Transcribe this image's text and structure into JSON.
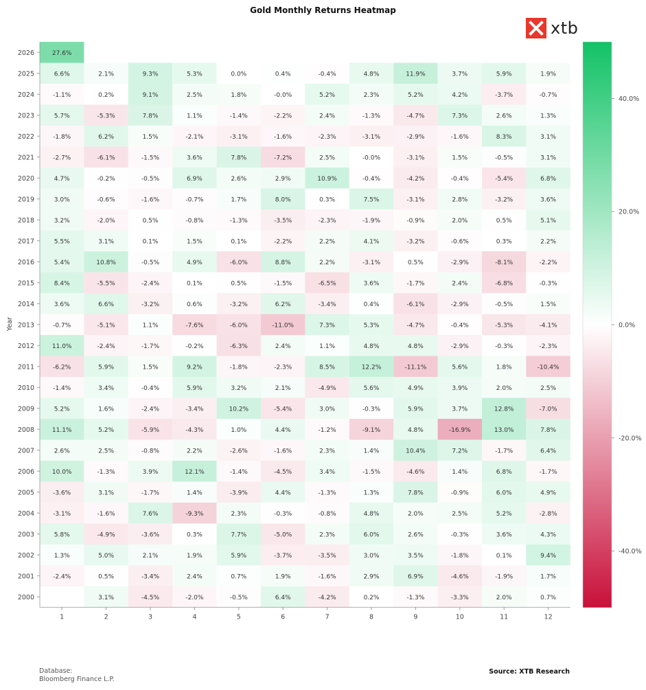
{
  "footer": {
    "database_label": "Database:",
    "database_value": "Bloomberg Finance L.P.",
    "source": "Source: XTB Research"
  },
  "logo": {
    "text": "xtb",
    "icon": "xtb-logo-icon",
    "color": "#e8372c"
  },
  "chart_data": {
    "type": "heatmap",
    "title": "Gold Monthly Returns Heatmap",
    "xlabel": "",
    "ylabel": "Year",
    "x_categories": [
      1,
      2,
      3,
      4,
      5,
      6,
      7,
      8,
      9,
      10,
      11,
      12
    ],
    "y_categories": [
      2026,
      2025,
      2024,
      2023,
      2022,
      2021,
      2020,
      2019,
      2018,
      2017,
      2016,
      2015,
      2014,
      2013,
      2012,
      2011,
      2010,
      2009,
      2008,
      2007,
      2006,
      2005,
      2004,
      2003,
      2002,
      2001,
      2000
    ],
    "values": [
      [
        27.6,
        null,
        null,
        null,
        null,
        null,
        null,
        null,
        null,
        null,
        null,
        null
      ],
      [
        6.6,
        2.1,
        9.3,
        5.3,
        0.0,
        0.4,
        -0.4,
        4.8,
        11.9,
        3.7,
        5.9,
        1.9
      ],
      [
        -1.1,
        0.2,
        9.1,
        2.5,
        1.8,
        -0.0,
        5.2,
        2.3,
        5.2,
        4.2,
        -3.7,
        -0.7
      ],
      [
        5.7,
        -5.3,
        7.8,
        1.1,
        -1.4,
        -2.2,
        2.4,
        -1.3,
        -4.7,
        7.3,
        2.6,
        1.3
      ],
      [
        -1.8,
        6.2,
        1.5,
        -2.1,
        -3.1,
        -1.6,
        -2.3,
        -3.1,
        -2.9,
        -1.6,
        8.3,
        3.1
      ],
      [
        -2.7,
        -6.1,
        -1.5,
        3.6,
        7.8,
        -7.2,
        2.5,
        -0.0,
        -3.1,
        1.5,
        -0.5,
        3.1
      ],
      [
        4.7,
        -0.2,
        -0.5,
        6.9,
        2.6,
        2.9,
        10.9,
        -0.4,
        -4.2,
        -0.4,
        -5.4,
        6.8
      ],
      [
        3.0,
        -0.6,
        -1.6,
        -0.7,
        1.7,
        8.0,
        0.3,
        7.5,
        -3.1,
        2.8,
        -3.2,
        3.6
      ],
      [
        3.2,
        -2.0,
        0.5,
        -0.8,
        -1.3,
        -3.5,
        -2.3,
        -1.9,
        -0.9,
        2.0,
        0.5,
        5.1
      ],
      [
        5.5,
        3.1,
        0.1,
        1.5,
        0.1,
        -2.2,
        2.2,
        4.1,
        -3.2,
        -0.6,
        0.3,
        2.2
      ],
      [
        5.4,
        10.8,
        -0.5,
        4.9,
        -6.0,
        8.8,
        2.2,
        -3.1,
        0.5,
        -2.9,
        -8.1,
        -2.2
      ],
      [
        8.4,
        -5.5,
        -2.4,
        0.1,
        0.5,
        -1.5,
        -6.5,
        3.6,
        -1.7,
        2.4,
        -6.8,
        -0.3
      ],
      [
        3.6,
        6.6,
        -3.2,
        0.6,
        -3.2,
        6.2,
        -3.4,
        0.4,
        -6.1,
        -2.9,
        -0.5,
        1.5
      ],
      [
        -0.7,
        -5.1,
        1.1,
        -7.6,
        -6.0,
        -11.0,
        7.3,
        5.3,
        -4.7,
        -0.4,
        -5.3,
        -4.1
      ],
      [
        11.0,
        -2.4,
        -1.7,
        -0.2,
        -6.3,
        2.4,
        1.1,
        4.8,
        4.8,
        -2.9,
        -0.3,
        -2.3
      ],
      [
        -6.2,
        5.9,
        1.5,
        9.2,
        -1.8,
        -2.3,
        8.5,
        12.2,
        -11.1,
        5.6,
        1.8,
        -10.4
      ],
      [
        -1.4,
        3.4,
        -0.4,
        5.9,
        3.2,
        2.1,
        -4.9,
        5.6,
        4.9,
        3.9,
        2.0,
        2.5
      ],
      [
        5.2,
        1.6,
        -2.4,
        -3.4,
        10.2,
        -5.4,
        3.0,
        -0.3,
        5.9,
        3.7,
        12.8,
        -7.0
      ],
      [
        11.1,
        5.2,
        -5.9,
        -4.3,
        1.0,
        4.4,
        -1.2,
        -9.1,
        4.8,
        -16.9,
        13.0,
        7.8
      ],
      [
        2.6,
        2.5,
        -0.8,
        2.2,
        -2.6,
        -1.6,
        2.3,
        1.4,
        10.4,
        7.2,
        -1.7,
        6.4
      ],
      [
        10.0,
        -1.3,
        3.9,
        12.1,
        -1.4,
        -4.5,
        3.4,
        -1.5,
        -4.6,
        1.4,
        6.8,
        -1.7
      ],
      [
        -3.6,
        3.1,
        -1.7,
        1.4,
        -3.9,
        4.4,
        -1.3,
        1.3,
        7.8,
        -0.9,
        6.0,
        4.9
      ],
      [
        -3.1,
        -1.6,
        7.6,
        -9.3,
        2.3,
        -0.3,
        -0.8,
        4.8,
        2.0,
        2.5,
        5.2,
        -2.8
      ],
      [
        5.8,
        -4.9,
        -3.6,
        0.3,
        7.7,
        -5.0,
        2.3,
        6.0,
        2.6,
        -0.3,
        3.6,
        4.3
      ],
      [
        1.3,
        5.0,
        2.1,
        1.9,
        5.9,
        -3.7,
        -3.5,
        3.0,
        3.5,
        -1.8,
        0.1,
        9.4
      ],
      [
        -2.4,
        0.5,
        -3.4,
        2.4,
        0.7,
        1.9,
        -1.6,
        2.9,
        6.9,
        -4.6,
        -1.9,
        1.7
      ],
      [
        null,
        3.1,
        -4.5,
        -2.0,
        -0.5,
        6.4,
        -4.2,
        0.2,
        -1.3,
        -3.3,
        2.0,
        0.7
      ]
    ],
    "value_format": "%",
    "colorscale": {
      "min": -50,
      "max": 50,
      "low_color": "#c8103a",
      "mid_color": "#ffffff",
      "high_color": "#12c266"
    },
    "colorbar_ticks": [
      40.0,
      20.0,
      0.0,
      -20.0,
      -40.0
    ],
    "colorbar_position": "right",
    "grid": false
  }
}
